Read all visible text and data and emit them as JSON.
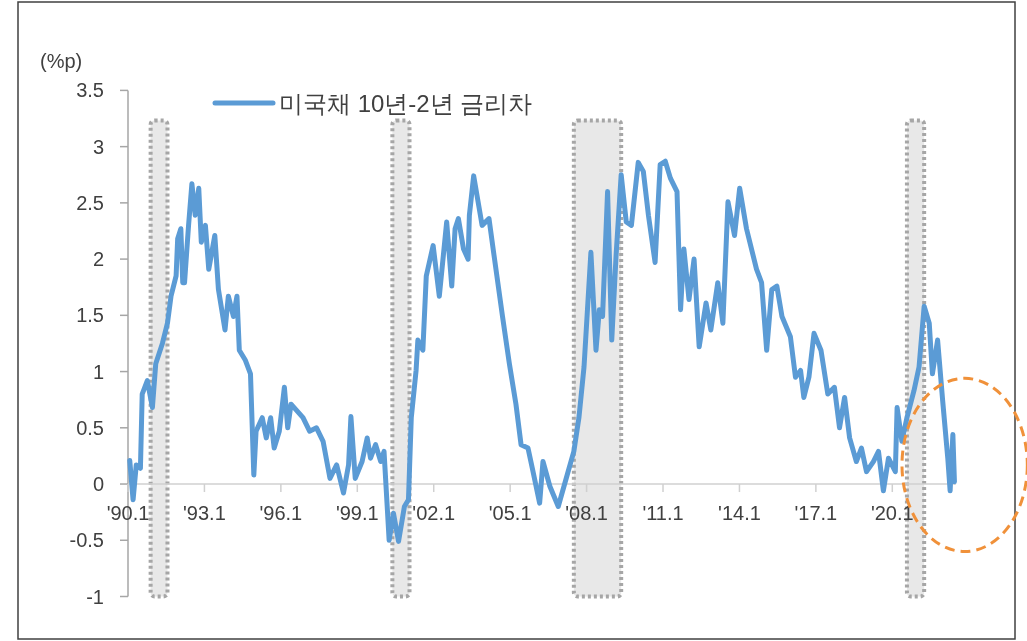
{
  "chart_data": {
    "type": "line",
    "ylabel": "(%p)",
    "legend": "top",
    "line_style": "solid",
    "x": [
      "1990-01-26",
      "1990-03-13",
      "1990-04-28",
      "1990-06-27",
      "1990-07-22",
      "1990-10-04",
      "1990-12-16",
      "1991-02-03",
      "1991-05-07",
      "1991-07-19",
      "1991-09-09",
      "1991-11-21",
      "1991-12-13",
      "1992-01-28",
      "1992-02-25",
      "1992-03-20",
      "1992-05-17",
      "1992-07-04",
      "1992-08-21",
      "1992-10-11",
      "1992-11-17",
      "1993-01-15",
      "1993-03-02",
      "1993-05-28",
      "1993-07-19",
      "1993-10-22",
      "1993-12-09",
      "1994-02-21",
      "1994-04-11",
      "1994-05-14",
      "1994-08-10",
      "1994-10-22",
      "1994-12-09",
      "1995-01-11",
      "1995-04-08",
      "1995-06-05",
      "1995-08-07",
      "1995-09-27",
      "1995-12-09",
      "1996-02-21",
      "1996-04-08",
      "1996-05-25",
      "1996-11-14",
      "1997-02-17",
      "1997-05-25",
      "1997-08-28",
      "1997-12-05",
      "1998-03-09",
      "1998-06-16",
      "1998-08-28",
      "1998-10-01",
      "1998-12-02",
      "1999-03-09",
      "1999-05-21",
      "1999-07-08",
      "1999-09-20",
      "1999-12-02",
      "2000-01-19",
      "2000-04-01",
      "2000-06-02",
      "2000-08-14",
      "2000-11-07",
      "2001-01-04",
      "2001-02-14",
      "2001-04-22",
      "2001-05-17",
      "2001-07-28",
      "2001-09-16",
      "2001-12-23",
      "2002-03-20",
      "2002-07-04",
      "2002-09-16",
      "2002-11-03",
      "2002-12-20",
      "2003-03-02",
      "2003-05-07",
      "2003-05-25",
      "2003-07-26",
      "2003-11-25",
      "2004-03-02",
      "2004-05-14",
      "2004-09-13",
      "2004-12-20",
      "2005-03-23",
      "2005-06-05",
      "2005-09-13",
      "2005-11-25",
      "2006-02-28",
      "2006-04-15",
      "2006-07-22",
      "2006-11-21",
      "2007-03-27",
      "2007-07-01",
      "2007-09-13",
      "2007-11-25",
      "2008-03-02",
      "2008-05-14",
      "2008-07-01",
      "2008-08-17",
      "2008-10-28",
      "2008-12-27",
      "2009-02-28",
      "2009-05-10",
      "2009-07-22",
      "2009-10-04",
      "2010-01-11",
      "2010-03-23",
      "2010-06-05",
      "2010-09-09",
      "2010-11-21",
      "2011-02-03",
      "2011-04-15",
      "2011-07-19",
      "2011-09-09",
      "2011-10-26",
      "2012-01-08",
      "2012-03-20",
      "2012-06-02",
      "2012-09-09",
      "2012-11-17",
      "2013-02-25",
      "2013-05-07",
      "2013-07-19",
      "2013-10-22",
      "2014-01-04",
      "2014-04-11",
      "2014-09-02",
      "2014-11-14",
      "2015-01-26",
      "2015-04-08",
      "2015-06-20",
      "2015-09-02",
      "2016-01-01",
      "2016-03-13",
      "2016-05-25",
      "2016-07-11",
      "2016-09-23",
      "2016-12-05",
      "2017-03-13",
      "2017-06-20",
      "2017-09-23",
      "2017-12-05",
      "2018-02-17",
      "2018-04-28",
      "2018-08-03",
      "2018-10-15",
      "2018-12-27",
      "2019-04-04",
      "2019-06-16",
      "2019-08-25",
      "2019-11-07",
      "2020-02-14",
      "2020-03-09",
      "2020-05-17",
      "2020-07-28",
      "2020-11-07",
      "2021-01-19",
      "2021-04-01",
      "2021-06-13",
      "2021-07-28",
      "2021-10-11",
      "2021-12-23",
      "2022-03-05",
      "2022-04-08",
      "2022-05-17",
      "2022-06-09"
    ],
    "series": [
      {
        "name": "미국채 10년-2년 금리차",
        "color": "#5b9bd5",
        "values": [
          0.21,
          -0.14,
          0.17,
          0.14,
          0.8,
          0.92,
          0.68,
          1.07,
          1.25,
          1.43,
          1.67,
          1.85,
          2.18,
          2.27,
          1.79,
          1.79,
          2.3,
          2.67,
          2.39,
          2.63,
          2.15,
          2.3,
          1.91,
          2.21,
          1.73,
          1.37,
          1.67,
          1.49,
          1.67,
          1.19,
          1.1,
          0.98,
          0.08,
          0.47,
          0.59,
          0.41,
          0.59,
          0.32,
          0.47,
          0.86,
          0.5,
          0.71,
          0.59,
          0.47,
          0.5,
          0.38,
          0.05,
          0.17,
          -0.08,
          0.17,
          0.6,
          0.05,
          0.2,
          0.41,
          0.23,
          0.35,
          0.2,
          0.29,
          -0.5,
          -0.26,
          -0.51,
          -0.2,
          -0.14,
          0.59,
          1.01,
          1.28,
          1.19,
          1.85,
          2.12,
          1.67,
          2.33,
          1.76,
          2.27,
          2.36,
          2.09,
          2.0,
          2.39,
          2.74,
          2.3,
          2.36,
          2.03,
          1.49,
          1.07,
          0.71,
          0.35,
          0.32,
          0.11,
          -0.17,
          0.2,
          -0.02,
          -0.2,
          0.08,
          0.29,
          0.59,
          1.04,
          2.06,
          1.19,
          1.55,
          1.49,
          2.6,
          1.28,
          2.03,
          2.75,
          2.33,
          2.3,
          2.86,
          2.78,
          2.39,
          1.97,
          2.84,
          2.87,
          2.72,
          2.6,
          1.55,
          2.09,
          1.64,
          2.0,
          1.22,
          1.61,
          1.37,
          1.79,
          1.43,
          2.51,
          2.21,
          2.63,
          2.27,
          1.91,
          1.79,
          1.19,
          1.73,
          1.76,
          1.49,
          1.31,
          0.95,
          1.01,
          0.77,
          0.95,
          1.34,
          1.19,
          0.8,
          0.86,
          0.5,
          0.77,
          0.41,
          0.2,
          0.32,
          0.11,
          0.2,
          0.29,
          -0.06,
          0.23,
          0.11,
          0.68,
          0.38,
          0.59,
          0.83,
          1.04,
          1.58,
          1.43,
          0.98,
          1.28,
          0.74,
          0.23,
          -0.06,
          0.44,
          0.02
        ]
      }
    ],
    "xlim": [
      "1990-01-01",
      "2022-07-01"
    ],
    "xticks": [
      {
        "value": "1990-01",
        "label": "'90.1"
      },
      {
        "value": "1993-01",
        "label": "'93.1"
      },
      {
        "value": "1996-01",
        "label": "'96.1"
      },
      {
        "value": "1999-01",
        "label": "'99.1"
      },
      {
        "value": "2002-01",
        "label": "'02.1"
      },
      {
        "value": "2005-01",
        "label": "'05.1"
      },
      {
        "value": "2008-01",
        "label": "'08.1"
      },
      {
        "value": "2011-01",
        "label": "'11.1"
      },
      {
        "value": "2014-01",
        "label": "'14.1"
      },
      {
        "value": "2017-01",
        "label": "'17.1"
      },
      {
        "value": "2020-01",
        "label": "'20.1"
      }
    ],
    "ylim": [
      -1,
      3.5
    ],
    "yticks": [
      -1,
      -0.5,
      0,
      0.5,
      1,
      1.5,
      2,
      2.5,
      3,
      3.5
    ],
    "bands": [
      {
        "axis": "x",
        "from": "1990-11-21",
        "to": "1991-07-19",
        "color": "#e8e8e8"
      },
      {
        "axis": "x",
        "from": "2000-05-17",
        "to": "2001-01-19",
        "color": "#e8e8e8"
      },
      {
        "axis": "x",
        "from": "2007-07-01",
        "to": "2009-05-10",
        "color": "#e8e8e8"
      },
      {
        "axis": "x",
        "from": "2020-07-28",
        "to": "2021-04-01",
        "color": "#e8e8e8"
      }
    ]
  }
}
